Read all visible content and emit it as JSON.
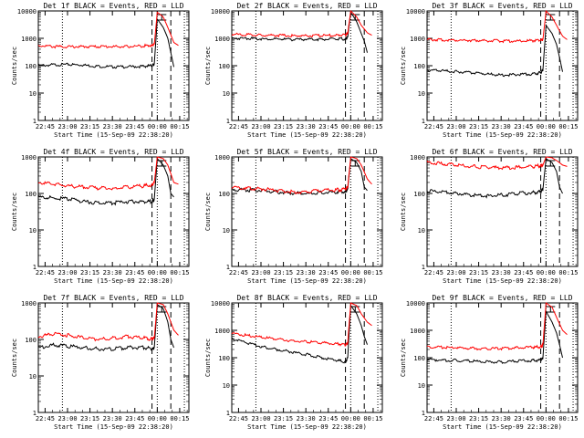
{
  "chart_data": [
    {
      "type": "line",
      "title": "Det 1f BLACK = Events, RED = LLD",
      "xlabel": "Start Time (15-Sep-09 22:38:20)",
      "ylabel": "Counts/sec",
      "y_scale": "log",
      "ylim": [
        1,
        10000
      ],
      "y_ticks": [
        "1",
        "10",
        "100",
        "1000",
        "10000"
      ],
      "x_ticks": [
        "22:45",
        "23:00",
        "23:15",
        "23:30",
        "23:45",
        "00:00",
        "00:15"
      ],
      "series": [
        {
          "color": "#000000",
          "x": [
            0,
            0.1,
            0.2,
            0.3,
            0.4,
            0.5,
            0.6,
            0.7,
            0.755,
            0.77,
            0.79,
            0.83,
            0.86,
            0.88,
            0.9
          ],
          "y": [
            100,
            108,
            110,
            105,
            95,
            90,
            92,
            95,
            100,
            120,
            5000,
            2500,
            1000,
            300,
            90
          ]
        },
        {
          "color": "#ff0000",
          "x": [
            0,
            0.1,
            0.2,
            0.3,
            0.4,
            0.5,
            0.6,
            0.7,
            0.755,
            0.77,
            0.79,
            0.83,
            0.86,
            0.9,
            0.93
          ],
          "y": [
            550,
            500,
            490,
            500,
            500,
            500,
            500,
            530,
            560,
            600,
            9000,
            6000,
            2500,
            700,
            550
          ]
        }
      ]
    },
    {
      "type": "line",
      "title": "Det 2f BLACK = Events, RED = LLD",
      "xlabel": "Start Time (15-Sep-09 22:38:20)",
      "ylabel": "Counts/sec",
      "y_scale": "log",
      "ylim": [
        1,
        10000
      ],
      "y_ticks": [
        "1",
        "10",
        "100",
        "1000",
        "10000"
      ],
      "x_ticks": [
        "22:45",
        "23:00",
        "23:15",
        "23:30",
        "23:45",
        "00:00",
        "00:15"
      ],
      "series": [
        {
          "color": "#000000",
          "x": [
            0,
            0.1,
            0.2,
            0.3,
            0.4,
            0.5,
            0.6,
            0.7,
            0.755,
            0.77,
            0.79,
            0.83,
            0.86,
            0.88,
            0.9
          ],
          "y": [
            1000,
            1000,
            950,
            950,
            900,
            920,
            930,
            930,
            950,
            1100,
            9000,
            4000,
            1500,
            800,
            300
          ]
        },
        {
          "color": "#ff0000",
          "x": [
            0,
            0.1,
            0.2,
            0.3,
            0.4,
            0.5,
            0.6,
            0.7,
            0.755,
            0.77,
            0.79,
            0.83,
            0.86,
            0.9,
            0.93
          ],
          "y": [
            1400,
            1350,
            1300,
            1300,
            1250,
            1250,
            1250,
            1300,
            1350,
            1500,
            10000,
            6000,
            3000,
            1600,
            1300
          ]
        }
      ]
    },
    {
      "type": "line",
      "title": "Det 3f BLACK = Events, RED = LLD",
      "xlabel": "Start Time (15-Sep-09 22:38:20)",
      "ylabel": "Counts/sec",
      "y_scale": "log",
      "ylim": [
        1,
        10000
      ],
      "y_ticks": [
        "1",
        "10",
        "100",
        "1000",
        "10000"
      ],
      "x_ticks": [
        "22:45",
        "23:00",
        "23:15",
        "23:30",
        "23:45",
        "00:00",
        "00:15"
      ],
      "series": [
        {
          "color": "#000000",
          "x": [
            0,
            0.1,
            0.2,
            0.3,
            0.4,
            0.5,
            0.6,
            0.7,
            0.755,
            0.77,
            0.79,
            0.83,
            0.86,
            0.88,
            0.9
          ],
          "y": [
            70,
            65,
            60,
            55,
            50,
            45,
            48,
            50,
            55,
            70,
            3000,
            1500,
            600,
            200,
            60
          ]
        },
        {
          "color": "#ff0000",
          "x": [
            0,
            0.1,
            0.2,
            0.3,
            0.4,
            0.5,
            0.6,
            0.7,
            0.755,
            0.77,
            0.79,
            0.83,
            0.86,
            0.9,
            0.93
          ],
          "y": [
            900,
            880,
            850,
            850,
            820,
            800,
            800,
            820,
            850,
            900,
            10000,
            6000,
            3000,
            1200,
            900
          ]
        }
      ]
    },
    {
      "type": "line",
      "title": "Det 4f BLACK = Events, RED = LLD",
      "xlabel": "Start Time (15-Sep-09 22:38:20)",
      "ylabel": "Counts/sec",
      "y_scale": "log",
      "ylim": [
        1,
        1000
      ],
      "y_ticks": [
        "1",
        "10",
        "100",
        "1000"
      ],
      "x_ticks": [
        "22:45",
        "23:00",
        "23:15",
        "23:30",
        "23:45",
        "00:00",
        "00:15"
      ],
      "series": [
        {
          "color": "#000000",
          "x": [
            0,
            0.1,
            0.2,
            0.3,
            0.4,
            0.5,
            0.6,
            0.7,
            0.755,
            0.77,
            0.79,
            0.83,
            0.86,
            0.88,
            0.9
          ],
          "y": [
            80,
            75,
            70,
            60,
            55,
            55,
            60,
            60,
            60,
            70,
            900,
            600,
            300,
            100,
            80
          ]
        },
        {
          "color": "#ff0000",
          "x": [
            0,
            0.1,
            0.2,
            0.3,
            0.4,
            0.5,
            0.6,
            0.7,
            0.755,
            0.77,
            0.79,
            0.83,
            0.86,
            0.9,
            0.93
          ],
          "y": [
            200,
            180,
            160,
            150,
            140,
            140,
            150,
            160,
            170,
            200,
            1000,
            900,
            600,
            200,
            180
          ]
        }
      ]
    },
    {
      "type": "line",
      "title": "Det 5f BLACK = Events, RED = LLD",
      "xlabel": "Start Time (15-Sep-09 22:38:20)",
      "ylabel": "Counts/sec",
      "y_scale": "log",
      "ylim": [
        1,
        1000
      ],
      "y_ticks": [
        "1",
        "10",
        "100",
        "1000"
      ],
      "x_ticks": [
        "22:45",
        "23:00",
        "23:15",
        "23:30",
        "23:45",
        "00:00",
        "00:15"
      ],
      "series": [
        {
          "color": "#000000",
          "x": [
            0,
            0.1,
            0.2,
            0.3,
            0.4,
            0.5,
            0.6,
            0.7,
            0.755,
            0.77,
            0.79,
            0.83,
            0.86,
            0.88,
            0.9
          ],
          "y": [
            130,
            125,
            120,
            110,
            100,
            100,
            105,
            110,
            115,
            130,
            900,
            700,
            400,
            150,
            120
          ]
        },
        {
          "color": "#ff0000",
          "x": [
            0,
            0.1,
            0.2,
            0.3,
            0.4,
            0.5,
            0.6,
            0.7,
            0.755,
            0.77,
            0.79,
            0.83,
            0.86,
            0.9,
            0.93
          ],
          "y": [
            150,
            140,
            135,
            120,
            110,
            110,
            120,
            125,
            130,
            150,
            1000,
            900,
            600,
            250,
            180
          ]
        }
      ]
    },
    {
      "type": "line",
      "title": "Det 6f BLACK = Events, RED = LLD",
      "xlabel": "Start Time (15-Sep-09 22:38:20)",
      "ylabel": "Counts/sec",
      "y_scale": "log",
      "ylim": [
        1,
        1000
      ],
      "y_ticks": [
        "1",
        "10",
        "100",
        "1000"
      ],
      "x_ticks": [
        "22:45",
        "23:00",
        "23:15",
        "23:30",
        "23:45",
        "00:00",
        "00:15"
      ],
      "series": [
        {
          "color": "#000000",
          "x": [
            0,
            0.1,
            0.2,
            0.3,
            0.4,
            0.5,
            0.6,
            0.7,
            0.755,
            0.77,
            0.79,
            0.83,
            0.86,
            0.88,
            0.9
          ],
          "y": [
            120,
            110,
            100,
            90,
            85,
            90,
            100,
            105,
            110,
            130,
            900,
            700,
            400,
            150,
            100
          ]
        },
        {
          "color": "#ff0000",
          "x": [
            0,
            0.1,
            0.2,
            0.3,
            0.4,
            0.5,
            0.6,
            0.7,
            0.755,
            0.77,
            0.79,
            0.83,
            0.86,
            0.9,
            0.93
          ],
          "y": [
            700,
            650,
            600,
            550,
            520,
            500,
            520,
            550,
            580,
            600,
            1000,
            950,
            800,
            600,
            550
          ]
        }
      ]
    },
    {
      "type": "line",
      "title": "Det 7f BLACK = Events, RED = LLD",
      "xlabel": "Start Time (15-Sep-09 22:38:20)",
      "ylabel": "Counts/sec",
      "y_scale": "log",
      "ylim": [
        1,
        1000
      ],
      "y_ticks": [
        "1",
        "10",
        "100",
        "1000"
      ],
      "x_ticks": [
        "22:45",
        "23:00",
        "23:15",
        "23:30",
        "23:45",
        "00:00",
        "00:15"
      ],
      "series": [
        {
          "color": "#000000",
          "x": [
            0,
            0.1,
            0.2,
            0.3,
            0.4,
            0.5,
            0.6,
            0.7,
            0.755,
            0.77,
            0.79,
            0.83,
            0.86,
            0.88,
            0.9
          ],
          "y": [
            60,
            70,
            65,
            60,
            55,
            55,
            60,
            60,
            55,
            60,
            900,
            700,
            300,
            100,
            60
          ]
        },
        {
          "color": "#ff0000",
          "x": [
            0,
            0.1,
            0.2,
            0.3,
            0.4,
            0.5,
            0.6,
            0.7,
            0.755,
            0.77,
            0.79,
            0.83,
            0.86,
            0.9,
            0.93
          ],
          "y": [
            120,
            140,
            130,
            110,
            100,
            110,
            120,
            110,
            100,
            110,
            1000,
            900,
            500,
            180,
            130
          ]
        }
      ]
    },
    {
      "type": "line",
      "title": "Det 8f BLACK = Events, RED = LLD",
      "xlabel": "Start Time (15-Sep-09 22:38:20)",
      "ylabel": "Counts/sec",
      "y_scale": "log",
      "ylim": [
        1,
        10000
      ],
      "y_ticks": [
        "1",
        "10",
        "100",
        "1000",
        "10000"
      ],
      "x_ticks": [
        "22:45",
        "23:00",
        "23:15",
        "23:30",
        "23:45",
        "00:00",
        "00:15"
      ],
      "series": [
        {
          "color": "#000000",
          "x": [
            0,
            0.1,
            0.2,
            0.3,
            0.4,
            0.5,
            0.6,
            0.7,
            0.755,
            0.77,
            0.79,
            0.83,
            0.86,
            0.88,
            0.9
          ],
          "y": [
            500,
            350,
            250,
            200,
            160,
            130,
            100,
            80,
            70,
            100,
            8000,
            4000,
            1500,
            600,
            300
          ]
        },
        {
          "color": "#ff0000",
          "x": [
            0,
            0.1,
            0.2,
            0.3,
            0.4,
            0.5,
            0.6,
            0.7,
            0.755,
            0.77,
            0.79,
            0.83,
            0.86,
            0.9,
            0.93
          ],
          "y": [
            800,
            650,
            550,
            480,
            420,
            380,
            350,
            320,
            300,
            350,
            10000,
            8000,
            4000,
            2000,
            1500
          ]
        }
      ]
    },
    {
      "type": "line",
      "title": "Det 9f BLACK = Events, RED = LLD",
      "xlabel": "Start Time (15-Sep-09 22:38:20)",
      "ylabel": "Counts/sec",
      "y_scale": "log",
      "ylim": [
        1,
        10000
      ],
      "y_ticks": [
        "1",
        "10",
        "100",
        "1000",
        "10000"
      ],
      "x_ticks": [
        "22:45",
        "23:00",
        "23:15",
        "23:30",
        "23:45",
        "00:00",
        "00:15"
      ],
      "series": [
        {
          "color": "#000000",
          "x": [
            0,
            0.1,
            0.2,
            0.3,
            0.4,
            0.5,
            0.6,
            0.7,
            0.755,
            0.77,
            0.79,
            0.83,
            0.86,
            0.88,
            0.9
          ],
          "y": [
            90,
            80,
            80,
            75,
            70,
            70,
            75,
            80,
            80,
            100,
            5000,
            2000,
            800,
            300,
            100
          ]
        },
        {
          "color": "#ff0000",
          "x": [
            0,
            0.1,
            0.2,
            0.3,
            0.4,
            0.5,
            0.6,
            0.7,
            0.755,
            0.77,
            0.79,
            0.83,
            0.86,
            0.9,
            0.93
          ],
          "y": [
            250,
            240,
            230,
            220,
            210,
            220,
            230,
            240,
            250,
            300,
            10000,
            7000,
            3000,
            1000,
            700
          ]
        }
      ]
    }
  ]
}
